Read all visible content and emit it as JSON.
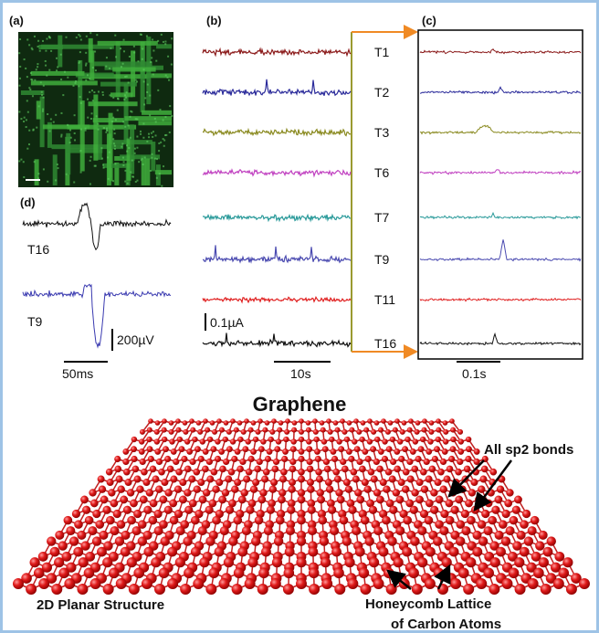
{
  "panels": {
    "a": {
      "label": "(a)"
    },
    "b": {
      "label": "(b)",
      "traces": [
        "T1",
        "T2",
        "T3",
        "T6",
        "T7",
        "T9",
        "T11",
        "T16"
      ],
      "current_scale": "0.1µA",
      "time_scale": "10s"
    },
    "c": {
      "label": "(c)",
      "time_scale": "0.1s"
    },
    "d": {
      "label": "(d)",
      "traces": [
        "T16",
        "T9"
      ],
      "voltage_scale": "200µV",
      "time_scale": "50ms"
    }
  },
  "graphene": {
    "title": "Graphene",
    "annotations": [
      "All sp2 bonds",
      "2D Planar Structure",
      "Honeycomb Lattice",
      "of Carbon Atoms"
    ]
  }
}
